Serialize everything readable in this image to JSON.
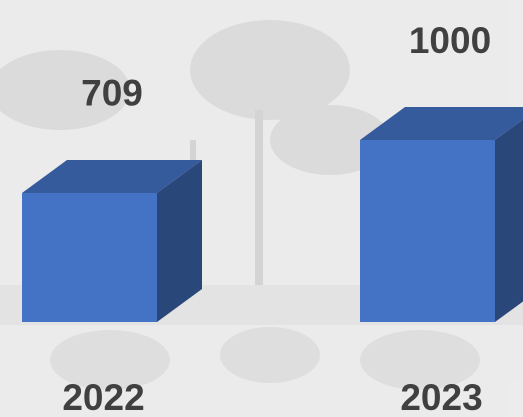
{
  "chart_data": {
    "type": "bar",
    "categories": [
      "2022",
      "2023"
    ],
    "values": [
      709,
      1000
    ],
    "color": "#4472c4"
  }
}
